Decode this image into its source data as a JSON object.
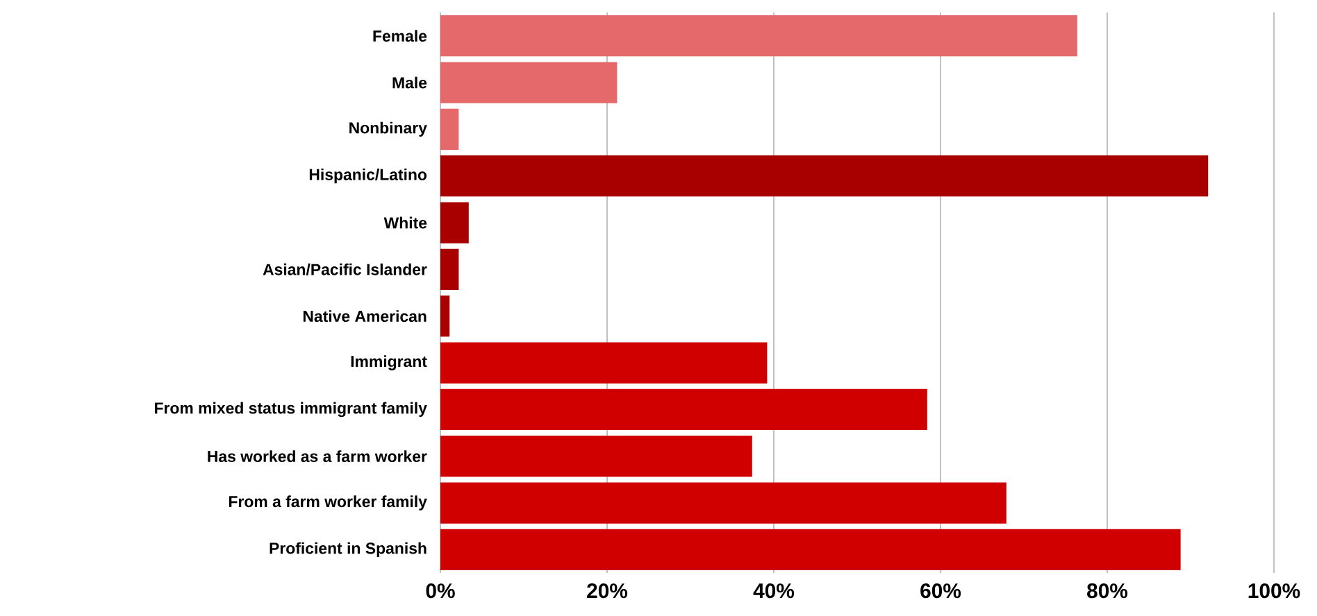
{
  "chart_data": {
    "type": "bar",
    "orientation": "horizontal",
    "categories": [
      "Female",
      "Male",
      "Nonbinary",
      "Hispanic/Latino",
      "White",
      "Asian/Pacific Islander",
      "Native American",
      "Immigrant",
      "From mixed status immigrant family",
      "Has worked as a farm worker",
      "From a farm worker family",
      "Proficient in Spanish"
    ],
    "values": [
      76.4,
      21.2,
      2.2,
      92.1,
      3.4,
      2.2,
      1.1,
      39.2,
      58.4,
      37.4,
      67.9,
      88.8
    ],
    "colors": [
      "#e5696a",
      "#e5696a",
      "#e5696a",
      "#a80000",
      "#a80000",
      "#a80000",
      "#a80000",
      "#d00000",
      "#d00000",
      "#d00000",
      "#d00000",
      "#d00000"
    ],
    "xlim": [
      0,
      100
    ],
    "xticks": [
      {
        "value": 0,
        "label": "0%"
      },
      {
        "value": 20,
        "label": "20%"
      },
      {
        "value": 40,
        "label": "40%"
      },
      {
        "value": 60,
        "label": "60%"
      },
      {
        "value": 80,
        "label": "80%"
      },
      {
        "value": 100,
        "label": "100%"
      }
    ],
    "grid": "x"
  }
}
